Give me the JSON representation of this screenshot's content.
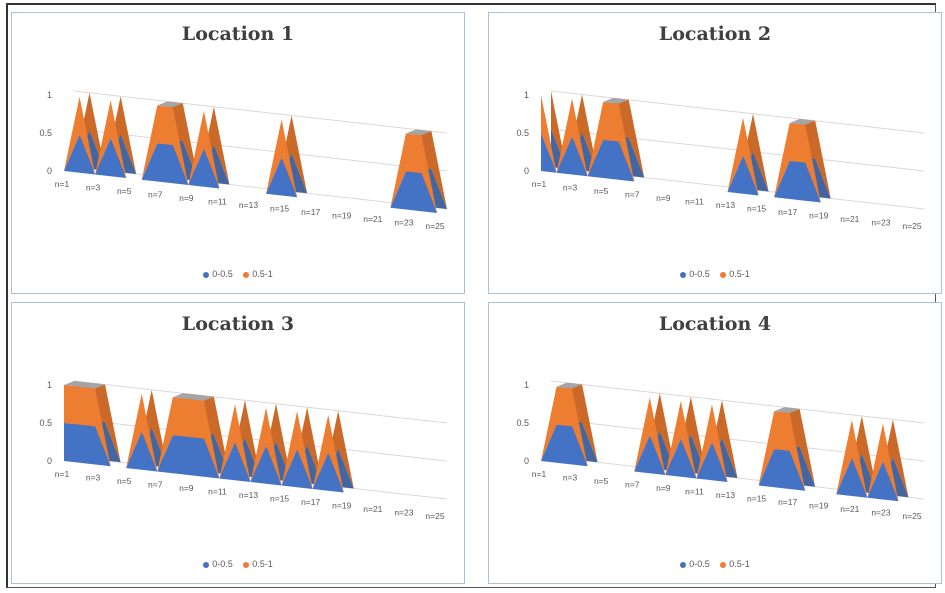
{
  "colors": {
    "low": "#4472C4",
    "high": "#ED7D31",
    "cap": "#A5A5A5"
  },
  "legend": [
    {
      "label": "0-0.5",
      "color": "#4472C4"
    },
    {
      "label": "0.5-1",
      "color": "#ED7D31"
    }
  ],
  "chart_data": [
    {
      "type": "area",
      "title": "Location 1",
      "yticks": [
        "0",
        "0.5",
        "1"
      ],
      "ylim": [
        0,
        1
      ],
      "x_tick_labels": [
        "n=1",
        "n=3",
        "n=5",
        "n=7",
        "n=9",
        "n=11",
        "n=13",
        "n=15",
        "n=17",
        "n=19",
        "n=21",
        "n=23",
        "n=25"
      ],
      "x": [
        1,
        2,
        3,
        4,
        5,
        6,
        7,
        8,
        9,
        10,
        11,
        12,
        13,
        14,
        15,
        16,
        17,
        18,
        19,
        20,
        21,
        22,
        23,
        24,
        25
      ],
      "series": [
        {
          "name": "0-0.5",
          "values": [
            0,
            0.5,
            0,
            0.5,
            0,
            0,
            0.5,
            0.5,
            0,
            0.5,
            0,
            0,
            0,
            0,
            0.5,
            0,
            0,
            0,
            0,
            0,
            0,
            0,
            0.5,
            0.5,
            0
          ]
        },
        {
          "name": "0.5-1",
          "values": [
            0,
            1,
            0,
            1,
            0,
            0,
            1,
            1,
            0,
            1,
            0,
            0,
            0,
            0,
            1,
            0,
            0,
            0,
            0,
            0,
            0,
            0,
            1,
            1,
            0
          ]
        }
      ]
    },
    {
      "type": "area",
      "title": "Location 2",
      "yticks": [
        "0",
        "0.5",
        "1"
      ],
      "ylim": [
        0,
        1
      ],
      "x_tick_labels": [
        "n=1",
        "n=3",
        "n=5",
        "n=7",
        "n=9",
        "n=11",
        "n=13",
        "n=15",
        "n=17",
        "n=19",
        "n=21",
        "n=23",
        "n=25"
      ],
      "x": [
        1,
        2,
        3,
        4,
        5,
        6,
        7,
        8,
        9,
        10,
        11,
        12,
        13,
        14,
        15,
        16,
        17,
        18,
        19,
        20,
        21,
        22,
        23,
        24,
        25
      ],
      "series": [
        {
          "name": "0-0.5",
          "values": [
            0.5,
            0,
            0.5,
            0,
            0.5,
            0.5,
            0,
            0,
            0,
            0,
            0,
            0,
            0,
            0.5,
            0,
            0,
            0.5,
            0.5,
            0,
            0,
            0,
            0,
            0,
            0,
            0
          ]
        },
        {
          "name": "0.5-1",
          "values": [
            1,
            0,
            1,
            0,
            1,
            1,
            0,
            0,
            0,
            0,
            0,
            0,
            0,
            1,
            0,
            0,
            1,
            1,
            0,
            0,
            0,
            0,
            0,
            0,
            0
          ]
        }
      ]
    },
    {
      "type": "area",
      "title": "Location 3",
      "yticks": [
        "0",
        "0.5",
        "1"
      ],
      "ylim": [
        0,
        1
      ],
      "x_tick_labels": [
        "n=1",
        "n=3",
        "n=5",
        "n=7",
        "n=9",
        "n=11",
        "n=13",
        "n=15",
        "n=17",
        "n=19",
        "n=21",
        "n=23",
        "n=25"
      ],
      "x": [
        1,
        2,
        3,
        4,
        5,
        6,
        7,
        8,
        9,
        10,
        11,
        12,
        13,
        14,
        15,
        16,
        17,
        18,
        19,
        20,
        21,
        22,
        23,
        24,
        25
      ],
      "series": [
        {
          "name": "0-0.5",
          "values": [
            0.5,
            0.5,
            0.5,
            0,
            0,
            0.5,
            0,
            0.5,
            0.5,
            0.5,
            0,
            0.5,
            0,
            0.5,
            0,
            0.5,
            0,
            0.5,
            0,
            0,
            0,
            0,
            0,
            0,
            0
          ]
        },
        {
          "name": "0.5-1",
          "values": [
            1,
            1,
            1,
            0,
            0,
            1,
            0,
            1,
            1,
            1,
            0,
            1,
            0,
            1,
            0,
            1,
            0,
            1,
            0,
            0,
            0,
            0,
            0,
            0,
            0
          ]
        }
      ]
    },
    {
      "type": "area",
      "title": "Location 4",
      "yticks": [
        "0",
        "0.5",
        "1"
      ],
      "ylim": [
        0,
        1
      ],
      "x_tick_labels": [
        "n=1",
        "n=3",
        "n=5",
        "n=7",
        "n=9",
        "n=11",
        "n=13",
        "n=15",
        "n=17",
        "n=19",
        "n=21",
        "n=23",
        "n=25"
      ],
      "x": [
        1,
        2,
        3,
        4,
        5,
        6,
        7,
        8,
        9,
        10,
        11,
        12,
        13,
        14,
        15,
        16,
        17,
        18,
        19,
        20,
        21,
        22,
        23,
        24,
        25
      ],
      "series": [
        {
          "name": "0-0.5",
          "values": [
            0,
            0.5,
            0.5,
            0,
            0,
            0,
            0,
            0.5,
            0,
            0.5,
            0,
            0.5,
            0,
            0,
            0,
            0.5,
            0.5,
            0,
            0,
            0,
            0.5,
            0,
            0.5,
            0,
            0
          ]
        },
        {
          "name": "0.5-1",
          "values": [
            0,
            1,
            1,
            0,
            0,
            0,
            0,
            1,
            0,
            1,
            0,
            1,
            0,
            0,
            0,
            1,
            1,
            0,
            0,
            0,
            1,
            0,
            1,
            0,
            0
          ]
        }
      ]
    }
  ]
}
